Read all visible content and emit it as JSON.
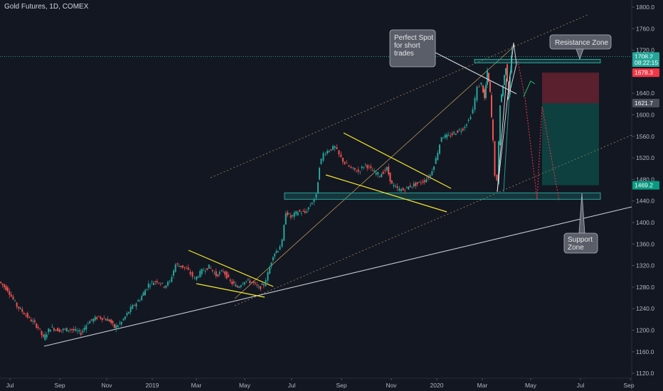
{
  "chart_data": {
    "type": "candlestick",
    "title": "Gold Futures, 1D, COMEX",
    "x_ticks": [
      "Jul",
      "Sep",
      "Nov",
      "2019",
      "Mar",
      "May",
      "Jul",
      "Sep",
      "Nov",
      "2020",
      "Mar",
      "May",
      "Jul",
      "Sep"
    ],
    "y_ticks": [
      "1800.0",
      "1760.0",
      "1720.0",
      "1680.0",
      "1640.0",
      "1600.0",
      "1560.0",
      "1520.0",
      "1480.0",
      "1440.0",
      "1400.0",
      "1360.0",
      "1320.0",
      "1280.0",
      "1240.0",
      "1200.0",
      "1160.0",
      "1120.0"
    ],
    "ylim": [
      1115,
      1805
    ],
    "price_tags": [
      {
        "label": "1708.2",
        "value": 1708.2,
        "color": "#26a69a"
      },
      {
        "label": "08:22:15",
        "value": 1697,
        "color": "#26a69a"
      },
      {
        "label": "1678.3",
        "value": 1678.3,
        "color": "#f23645"
      },
      {
        "label": "1621.7",
        "value": 1621.7,
        "color": "#4a4e59"
      },
      {
        "label": "1469.2",
        "value": 1469.2,
        "color": "#089981"
      }
    ],
    "series_points": [
      [
        0,
        1290
      ],
      [
        12,
        1275
      ],
      [
        25,
        1245
      ],
      [
        40,
        1225
      ],
      [
        55,
        1205
      ],
      [
        62,
        1185
      ],
      [
        72,
        1205
      ],
      [
        85,
        1200
      ],
      [
        100,
        1202
      ],
      [
        115,
        1195
      ],
      [
        125,
        1215
      ],
      [
        140,
        1225
      ],
      [
        155,
        1218
      ],
      [
        162,
        1205
      ],
      [
        172,
        1215
      ],
      [
        185,
        1240
      ],
      [
        198,
        1258
      ],
      [
        210,
        1285
      ],
      [
        222,
        1292
      ],
      [
        232,
        1282
      ],
      [
        240,
        1290
      ],
      [
        248,
        1322
      ],
      [
        258,
        1318
      ],
      [
        266,
        1310
      ],
      [
        275,
        1295
      ],
      [
        285,
        1310
      ],
      [
        295,
        1318
      ],
      [
        305,
        1302
      ],
      [
        315,
        1310
      ],
      [
        325,
        1290
      ],
      [
        335,
        1280
      ],
      [
        345,
        1292
      ],
      [
        355,
        1290
      ],
      [
        365,
        1278
      ],
      [
        372,
        1285
      ],
      [
        378,
        1305
      ],
      [
        385,
        1340
      ],
      [
        392,
        1350
      ],
      [
        398,
        1365
      ],
      [
        403,
        1420
      ],
      [
        410,
        1410
      ],
      [
        420,
        1420
      ],
      [
        430,
        1418
      ],
      [
        440,
        1438
      ],
      [
        446,
        1450
      ],
      [
        450,
        1505
      ],
      [
        456,
        1528
      ],
      [
        464,
        1535
      ],
      [
        472,
        1540
      ],
      [
        478,
        1525
      ],
      [
        486,
        1510
      ],
      [
        495,
        1500
      ],
      [
        505,
        1495
      ],
      [
        515,
        1508
      ],
      [
        525,
        1495
      ],
      [
        535,
        1488
      ],
      [
        545,
        1500
      ],
      [
        552,
        1470
      ],
      [
        560,
        1462
      ],
      [
        568,
        1460
      ],
      [
        578,
        1468
      ],
      [
        588,
        1472
      ],
      [
        598,
        1478
      ],
      [
        606,
        1488
      ],
      [
        614,
        1518
      ],
      [
        622,
        1560
      ],
      [
        632,
        1560
      ],
      [
        642,
        1568
      ],
      [
        652,
        1575
      ],
      [
        660,
        1590
      ],
      [
        666,
        1610
      ],
      [
        672,
        1650
      ],
      [
        678,
        1658
      ],
      [
        682,
        1630
      ],
      [
        686,
        1680
      ],
      [
        690,
        1640
      ],
      [
        694,
        1550
      ],
      [
        697,
        1490
      ],
      [
        700,
        1475
      ],
      [
        704,
        1620
      ],
      [
        708,
        1655
      ],
      [
        712,
        1690
      ],
      [
        716,
        1640
      ],
      [
        720,
        1708
      ]
    ],
    "callouts": [
      {
        "lines": [
          "Perfect Spot",
          "for short",
          "trades"
        ]
      },
      {
        "lines": [
          "Resistance Zone"
        ]
      },
      {
        "lines": [
          "Support",
          "Zone"
        ]
      }
    ]
  }
}
